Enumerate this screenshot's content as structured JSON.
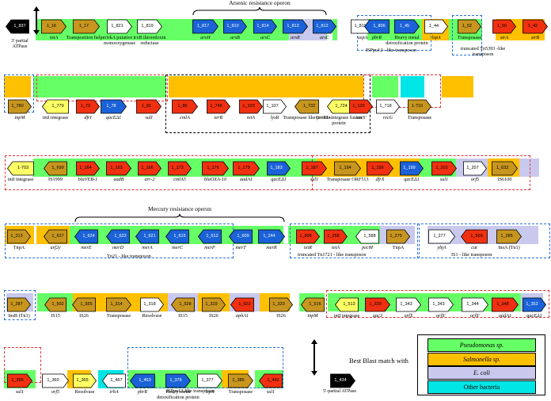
{
  "colors": {
    "pseudomonas": "#66ff66",
    "salmonella": "#ffc000",
    "ecoli": "#c9c9ee",
    "other": "#00e5e5",
    "red": "#f03010",
    "gold": "#c8961e",
    "blue": "#1b62d8",
    "white": "#ffffff",
    "black": "#000000",
    "yellowgene": "#ffff66"
  },
  "operons": {
    "arsenic": "Arsenic resistance operon",
    "mercury": "Mercury resistance operon"
  },
  "captions": {
    "isppu12": "ISPpu12 - like transposon",
    "tn5393": "truncated Tn5393 -like transposon",
    "tn21": "Tn21 - like transposon",
    "tn1721": "truncated Tn1721 - like transposon",
    "is1": "IS1 - like transposon",
    "isppu13": "ISPpu13-like transposon",
    "partial3": "3' partial ATPase",
    "partial5": "5'-partial ATPase"
  },
  "legend": {
    "title": "Best Blast match with",
    "items": [
      "Pseudomonas sp.",
      "Salmonella sp.",
      "E. coli",
      "Other bacteria"
    ]
  },
  "rows": [
    {
      "genes": [
        {
          "id": "1_837",
          "label": "",
          "dir": "left",
          "color": "black"
        },
        {
          "id": "1_16",
          "label": "tniA",
          "dir": "right",
          "color": "gold"
        },
        {
          "id": "1_17",
          "label": "Transposition helper",
          "dir": "right",
          "color": "gold"
        },
        {
          "id": "1_821",
          "label": "trkA putative monooxygenase",
          "dir": "right",
          "color": "white"
        },
        {
          "id": "1_819",
          "label": "trxB thioredoxin reductase",
          "dir": "right",
          "color": "white"
        },
        {
          "id": "1_817",
          "label": "arsH",
          "dir": "right",
          "color": "blue"
        },
        {
          "id": "1_810",
          "label": "arsB",
          "dir": "right",
          "color": "blue"
        },
        {
          "id": "1_814",
          "label": "arsC",
          "dir": "right",
          "color": "blue"
        },
        {
          "id": "1_813",
          "label": "arsR",
          "dir": "right",
          "color": "blue"
        },
        {
          "id": "1_812",
          "label": "arsC",
          "dir": "right",
          "color": "blue"
        },
        {
          "id": "1_811",
          "label": "uspA",
          "dir": "right",
          "color": "white"
        },
        {
          "id": "1_806",
          "label": "pbrR",
          "dir": "left",
          "color": "blue"
        },
        {
          "id": "1_45",
          "label": "Heavy metal detoxification protein",
          "dir": "right",
          "color": "blue"
        },
        {
          "id": "1_44",
          "label": "lspA",
          "dir": "right",
          "color": "white"
        },
        {
          "id": "1_52",
          "label": "Transposase",
          "dir": "right",
          "color": "gold"
        },
        {
          "id": "1_50",
          "label": "strA",
          "dir": "right",
          "color": "red"
        },
        {
          "id": "1_42",
          "label": "strB",
          "dir": "right",
          "color": "red"
        }
      ]
    },
    {
      "genes": [
        {
          "id": "1_780",
          "label": "tnpM",
          "dir": "right",
          "color": "gold"
        },
        {
          "id": "1_779",
          "label": "intI integrase",
          "dir": "left",
          "color": "yellowgene"
        },
        {
          "id": "1_73",
          "label": "dfrI",
          "dir": "right",
          "color": "red"
        },
        {
          "id": "1_78",
          "label": "qacEΔ1",
          "dir": "right",
          "color": "blue"
        },
        {
          "id": "1_81",
          "label": "sulI",
          "dir": "right",
          "color": "red"
        },
        {
          "id": "1_86",
          "label": "cmlA",
          "dir": "right",
          "color": "red"
        },
        {
          "id": "1_748",
          "label": "terR",
          "dir": "right",
          "color": "red"
        },
        {
          "id": "1_103",
          "label": "tetA",
          "dir": "right",
          "color": "red"
        },
        {
          "id": "1_107",
          "label": "lysR",
          "dir": "right",
          "color": "white"
        },
        {
          "id": "1_732",
          "label": "Transposase like protein",
          "dir": "left",
          "color": "gold"
        },
        {
          "id": "1_724",
          "label": "GroEL-integrase fusion protein",
          "dir": "left",
          "color": "yellowgene"
        },
        {
          "id": "1_120",
          "label": "aac6'",
          "dir": "right",
          "color": "red"
        },
        {
          "id": "1_718",
          "label": "recG",
          "dir": "right",
          "color": "white"
        },
        {
          "id": "1-710",
          "label": "Transposase",
          "dir": "right",
          "color": "gold"
        }
      ]
    },
    {
      "genes": [
        {
          "id": "1-703",
          "label": "intI integrase",
          "dir": "left",
          "color": "yellowgene"
        },
        {
          "id": "1_699",
          "label": "IS1999",
          "dir": "left",
          "color": "gold"
        },
        {
          "id": "1_164",
          "label": "blaVEB-1",
          "dir": "right",
          "color": "red"
        },
        {
          "id": "1_163",
          "label": "aadB",
          "dir": "right",
          "color": "red"
        },
        {
          "id": "1_166",
          "label": "arr-2",
          "dir": "right",
          "color": "red"
        },
        {
          "id": "1_173",
          "label": "cmlA5",
          "dir": "right",
          "color": "red"
        },
        {
          "id": "1_176",
          "label": "blaOXA-10",
          "dir": "right",
          "color": "red"
        },
        {
          "id": "1_179",
          "label": "aadA1",
          "dir": "right",
          "color": "red"
        },
        {
          "id": "1_183",
          "label": "qacEΔ1",
          "dir": "right",
          "color": "blue"
        },
        {
          "id": "1_187",
          "label": "sul1",
          "dir": "right",
          "color": "red"
        },
        {
          "id": "1_194",
          "label": "Transposase ORF513",
          "dir": "right",
          "color": "gold"
        },
        {
          "id": "1_196",
          "label": "dfrX",
          "dir": "right",
          "color": "red"
        },
        {
          "id": "1_199",
          "label": "qacEΔ1",
          "dir": "right",
          "color": "blue"
        },
        {
          "id": "1_203",
          "label": "sul1",
          "dir": "right",
          "color": "red"
        },
        {
          "id": "1_207",
          "label": "orf5",
          "dir": "right",
          "color": "white"
        },
        {
          "id": "1_633",
          "label": "IS6100",
          "dir": "right",
          "color": "gold"
        }
      ]
    },
    {
      "genes": [
        {
          "id": "1_213",
          "label": "TnpA",
          "dir": "right",
          "color": "gold"
        },
        {
          "id": "1_627",
          "label": "urf2y",
          "dir": "left",
          "color": "gold"
        },
        {
          "id": "1_624",
          "label": "merE",
          "dir": "left",
          "color": "blue"
        },
        {
          "id": "1_622",
          "label": "merD",
          "dir": "left",
          "color": "blue"
        },
        {
          "id": "1_621",
          "label": "merA",
          "dir": "left",
          "color": "blue"
        },
        {
          "id": "1_615",
          "label": "merC",
          "dir": "left",
          "color": "blue"
        },
        {
          "id": "1_612",
          "label": "merP",
          "dir": "left",
          "color": "blue"
        },
        {
          "id": "1_609",
          "label": "merT",
          "dir": "left",
          "color": "blue"
        },
        {
          "id": "1_244",
          "label": "merR",
          "dir": "right",
          "color": "blue"
        },
        {
          "id": "1_898",
          "label": "tetR",
          "dir": "right",
          "color": "red"
        },
        {
          "id": "1_258",
          "label": "tetA",
          "dir": "right",
          "color": "red"
        },
        {
          "id": "1_588",
          "label": "pecM",
          "dir": "left",
          "color": "white"
        },
        {
          "id": "1_275",
          "label": "TnpA",
          "dir": "right",
          "color": "gold"
        },
        {
          "id": "1_277",
          "label": "ybjA",
          "dir": "right",
          "color": "white"
        },
        {
          "id": "1_569",
          "label": "cat",
          "dir": "left",
          "color": "red"
        },
        {
          "id": "1_285",
          "label": "InsA (Tn1)",
          "dir": "right",
          "color": "gold"
        }
      ]
    },
    {
      "genes": [
        {
          "id": "1_287",
          "label": "InsB (Tn1)",
          "dir": "right",
          "color": "gold"
        },
        {
          "id": "1_502",
          "label": "IS15",
          "dir": "left",
          "color": "gold"
        },
        {
          "id": "1_555",
          "label": "IS26",
          "dir": "left",
          "color": "gold"
        },
        {
          "id": "1_314",
          "label": "Transposase",
          "dir": "right",
          "color": "gold"
        },
        {
          "id": "1_318",
          "label": "Resolvase",
          "dir": "right",
          "color": "white"
        },
        {
          "id": "1_528",
          "label": "IS15",
          "dir": "left",
          "color": "gold"
        },
        {
          "id": "1_319",
          "label": "IS26",
          "dir": "right",
          "color": "gold"
        },
        {
          "id": "1_522",
          "label": "aphA1",
          "dir": "left",
          "color": "red"
        },
        {
          "id": "1_320",
          "label": "IS26",
          "dir": "right",
          "color": "gold"
        },
        {
          "id": "1_516",
          "label": "tnpM",
          "dir": "left",
          "color": "gold"
        },
        {
          "id": "1_513",
          "label": "intI integrase",
          "dir": "left",
          "color": "yellowgene"
        },
        {
          "id": "1_339",
          "label": "aac3",
          "dir": "right",
          "color": "red"
        },
        {
          "id": "1_343",
          "label": "orfX",
          "dir": "right",
          "color": "white"
        },
        {
          "id": "1_343",
          "label": "orfX'",
          "dir": "right",
          "color": "white"
        },
        {
          "id": "1_344",
          "label": "orfX'",
          "dir": "right",
          "color": "white"
        },
        {
          "id": "1_348",
          "label": "aadA1",
          "dir": "right",
          "color": "red"
        },
        {
          "id": "1_352",
          "label": "qacEΔ1",
          "dir": "right",
          "color": "blue"
        }
      ]
    },
    {
      "genes": [
        {
          "id": "1_356",
          "label": "sul1",
          "dir": "right",
          "color": "red"
        },
        {
          "id": "1_360",
          "label": "orf5",
          "dir": "right",
          "color": "white"
        },
        {
          "id": "1_365",
          "label": "Resolvase",
          "dir": "right",
          "color": "yellowgene"
        },
        {
          "id": "1_467",
          "label": "trbA",
          "dir": "left",
          "color": "white"
        },
        {
          "id": "1_463",
          "label": "pbrR",
          "dir": "left",
          "color": "blue"
        },
        {
          "id": "1_376",
          "label": "Heavy metal detoxification protein",
          "dir": "right",
          "color": "blue"
        },
        {
          "id": "1_377",
          "label": "lspA",
          "dir": "right",
          "color": "white"
        },
        {
          "id": "1_386",
          "label": "Transposase",
          "dir": "right",
          "color": "gold"
        },
        {
          "id": "1_442",
          "label": "sul1",
          "dir": "left",
          "color": "red"
        },
        {
          "id": "1_434",
          "label": "",
          "dir": "right",
          "color": "black"
        }
      ]
    }
  ]
}
